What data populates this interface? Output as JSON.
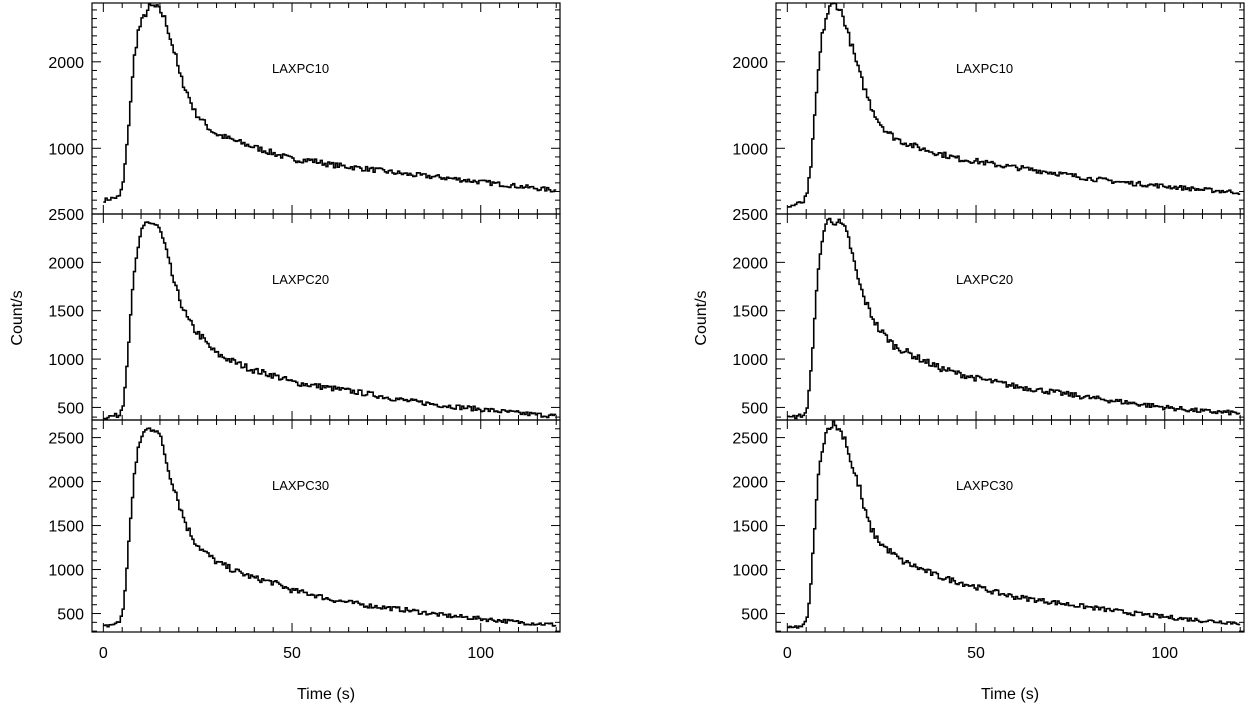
{
  "chart_data": [
    {
      "type": "line",
      "column": "left",
      "xlabel": "Time (s)",
      "ylabel": "Count/s",
      "xlim": [
        -3,
        121
      ],
      "xticks": [
        0,
        50,
        100
      ],
      "panels": [
        {
          "label": "LAXPC10",
          "ylim": [
            240,
            2680
          ],
          "yticks": [
            1000,
            2000
          ],
          "series": [
            {
              "x": [
                0,
                4,
                5,
                6,
                7,
                8,
                9,
                10,
                11,
                12,
                13,
                14,
                15,
                16,
                17,
                18,
                19,
                20,
                22,
                24,
                26,
                28,
                30,
                35,
                40,
                45,
                50,
                55,
                60,
                70,
                80,
                90,
                100,
                110,
                120
              ],
              "values": [
                400,
                440,
                600,
                1020,
                1550,
                2060,
                2350,
                2470,
                2560,
                2630,
                2640,
                2620,
                2580,
                2500,
                2360,
                2200,
                2050,
                1850,
                1640,
                1420,
                1320,
                1220,
                1160,
                1080,
                1010,
                940,
                870,
                860,
                810,
                760,
                700,
                660,
                610,
                560,
                510
              ]
            }
          ]
        },
        {
          "label": "LAXPC20",
          "ylim": [
            370,
            2500
          ],
          "yticks": [
            500,
            1000,
            1500,
            2000,
            2500
          ],
          "series": [
            {
              "x": [
                0,
                4,
                5,
                6,
                7,
                8,
                9,
                10,
                11,
                12,
                13,
                14,
                15,
                16,
                17,
                18,
                19,
                20,
                22,
                24,
                26,
                28,
                30,
                35,
                40,
                45,
                50,
                55,
                60,
                70,
                80,
                90,
                100,
                110,
                120
              ],
              "values": [
                400,
                420,
                540,
                930,
                1480,
                1880,
                2160,
                2310,
                2400,
                2420,
                2400,
                2380,
                2300,
                2180,
                2020,
                1870,
                1720,
                1620,
                1420,
                1300,
                1220,
                1120,
                1050,
                960,
                880,
                830,
                760,
                730,
                700,
                640,
                570,
                520,
                480,
                440,
                410
              ]
            }
          ]
        },
        {
          "label": "LAXPC30",
          "ylim": [
            290,
            2700
          ],
          "yticks": [
            500,
            1000,
            1500,
            2000,
            2500
          ],
          "series": [
            {
              "x": [
                0,
                4,
                5,
                6,
                7,
                8,
                9,
                10,
                11,
                12,
                13,
                14,
                15,
                16,
                17,
                18,
                19,
                20,
                22,
                24,
                26,
                28,
                30,
                35,
                40,
                45,
                50,
                55,
                60,
                70,
                80,
                90,
                100,
                110,
                120
              ],
              "values": [
                350,
                400,
                550,
                1000,
                1600,
                2080,
                2350,
                2530,
                2580,
                2600,
                2610,
                2590,
                2480,
                2320,
                2130,
                2000,
                1880,
                1720,
                1480,
                1320,
                1220,
                1150,
                1080,
                980,
                900,
                850,
                760,
                720,
                660,
                590,
                540,
                480,
                440,
                400,
                370
              ]
            }
          ]
        }
      ]
    },
    {
      "type": "line",
      "column": "right",
      "xlabel": "Time (s)",
      "ylabel": "Count/s",
      "xlim": [
        -3,
        121
      ],
      "xticks": [
        0,
        50,
        100
      ],
      "panels": [
        {
          "label": "LAXPC10",
          "ylim": [
            240,
            2680
          ],
          "yticks": [
            1000,
            2000
          ],
          "series": [
            {
              "x": [
                0,
                4,
                5,
                6,
                7,
                8,
                9,
                10,
                11,
                12,
                13,
                14,
                15,
                16,
                17,
                18,
                19,
                20,
                22,
                24,
                26,
                28,
                30,
                35,
                40,
                45,
                50,
                55,
                60,
                70,
                80,
                90,
                100,
                110,
                120
              ],
              "values": [
                320,
                380,
                470,
                800,
                1350,
                1900,
                2300,
                2500,
                2620,
                2680,
                2650,
                2580,
                2460,
                2300,
                2160,
                2000,
                1850,
                1720,
                1480,
                1310,
                1200,
                1130,
                1080,
                1000,
                940,
                880,
                850,
                810,
                780,
                720,
                650,
                600,
                560,
                520,
                490
              ]
            }
          ]
        },
        {
          "label": "LAXPC20",
          "ylim": [
            370,
            2500
          ],
          "yticks": [
            500,
            1000,
            1500,
            2000,
            2500
          ],
          "series": [
            {
              "x": [
                0,
                4,
                5,
                6,
                7,
                8,
                9,
                10,
                11,
                12,
                13,
                14,
                15,
                16,
                17,
                18,
                19,
                20,
                22,
                24,
                26,
                28,
                30,
                35,
                40,
                45,
                50,
                55,
                60,
                70,
                80,
                90,
                100,
                110,
                120
              ],
              "values": [
                390,
                420,
                480,
                850,
                1450,
                1900,
                2250,
                2400,
                2440,
                2430,
                2420,
                2390,
                2340,
                2240,
                2080,
                1900,
                1760,
                1640,
                1460,
                1310,
                1230,
                1140,
                1100,
                1000,
                910,
                850,
                800,
                760,
                720,
                660,
                600,
                550,
                500,
                460,
                440
              ]
            }
          ]
        },
        {
          "label": "LAXPC30",
          "ylim": [
            290,
            2700
          ],
          "yticks": [
            500,
            1000,
            1500,
            2000,
            2500
          ],
          "series": [
            {
              "x": [
                0,
                4,
                5,
                6,
                7,
                8,
                9,
                10,
                11,
                12,
                13,
                14,
                15,
                16,
                17,
                18,
                19,
                20,
                22,
                24,
                26,
                28,
                30,
                35,
                40,
                45,
                50,
                55,
                60,
                70,
                80,
                90,
                100,
                110,
                120
              ],
              "values": [
                330,
                360,
                440,
                820,
                1500,
                2050,
                2380,
                2550,
                2640,
                2650,
                2620,
                2560,
                2500,
                2330,
                2150,
                2040,
                1920,
                1700,
                1460,
                1320,
                1240,
                1170,
                1100,
                1010,
                920,
                860,
                800,
                740,
                690,
                630,
                570,
                510,
                460,
                420,
                390
              ]
            }
          ]
        }
      ]
    }
  ]
}
